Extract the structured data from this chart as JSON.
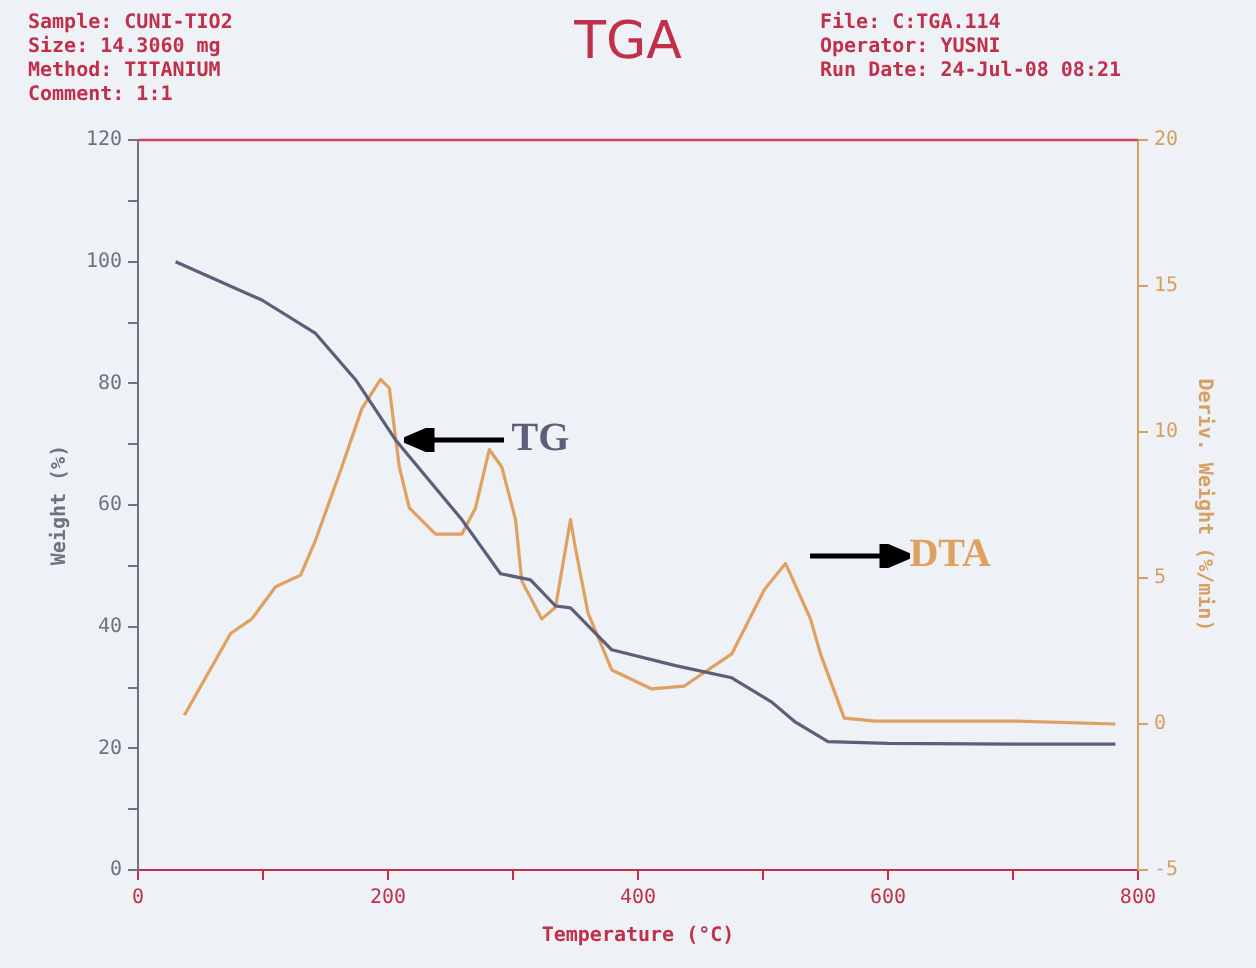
{
  "chart_data": {
    "type": "line",
    "title": "TGA",
    "xlabel": "Temperature (°C)",
    "ylabel": "Weight (%)",
    "y2label": "Deriv. Weight (%/min)",
    "annotations": [
      "Sample: CUNI-TIO2",
      "Size: 14.3060 mg",
      "Method: TITANIUM",
      "Comment: 1:1",
      "File: C:TGA.114",
      "Operator: YUSNI",
      "Run Date: 24-Jul-08 08:21"
    ],
    "series": [
      {
        "name": "TG",
        "color": "#5a5f7a",
        "x": [
          30,
          99,
          142,
          174,
          206,
          259,
          290,
          314,
          334,
          346,
          379,
          430,
          475,
          507,
          526,
          552,
          600,
          700,
          782
        ],
        "values": [
          100,
          93.7,
          88.2,
          80.6,
          70.7,
          57.6,
          48.7,
          47.7,
          43.4,
          43.1,
          36.2,
          33.6,
          31.6,
          27.6,
          24.3,
          21.1,
          20.8,
          20.7,
          20.7
        ]
      },
      {
        "name": "DTA",
        "color": "#e0a060",
        "axis": "y2",
        "x": [
          37,
          74,
          91,
          110,
          130,
          142,
          163,
          179,
          194,
          201,
          209,
          217,
          238,
          259,
          270,
          281,
          291,
          302,
          307,
          323,
          334,
          346,
          350,
          360,
          379,
          411,
          437,
          475,
          501,
          518,
          538,
          546,
          565,
          590,
          700,
          782
        ],
        "values": [
          0.3,
          3.1,
          3.6,
          4.7,
          5.1,
          6.3,
          8.8,
          10.8,
          11.8,
          11.5,
          8.8,
          7.4,
          6.5,
          6.5,
          7.4,
          9.4,
          8.8,
          7.0,
          4.9,
          3.6,
          4.0,
          7.0,
          6.0,
          3.8,
          1.85,
          1.2,
          1.3,
          2.4,
          4.6,
          5.5,
          3.6,
          2.4,
          0.2,
          0.1,
          0.1,
          0.0
        ]
      }
    ],
    "xlim": [
      0,
      800
    ],
    "xticks": [
      0,
      {
        "value": 100,
        "label": null
      },
      200,
      {
        "value": 300,
        "label": null
      },
      400,
      {
        "value": 500,
        "label": null
      },
      600,
      {
        "value": 700,
        "label": null
      },
      800
    ],
    "ylim": [
      0,
      120
    ],
    "yticks": [
      0,
      {
        "value": 10,
        "label": null
      },
      20,
      {
        "value": 30,
        "label": null
      },
      40,
      {
        "value": 50,
        "label": null
      },
      60,
      {
        "value": 70,
        "label": null
      },
      80,
      {
        "value": 90,
        "label": null
      },
      100,
      {
        "value": 110,
        "label": null
      },
      120
    ],
    "y2lim": [
      -5,
      20
    ],
    "y2ticks": [
      -5,
      0,
      5,
      10,
      15,
      20
    ],
    "grid": false,
    "legend": false,
    "marker": "none",
    "line_style": "solid"
  }
}
